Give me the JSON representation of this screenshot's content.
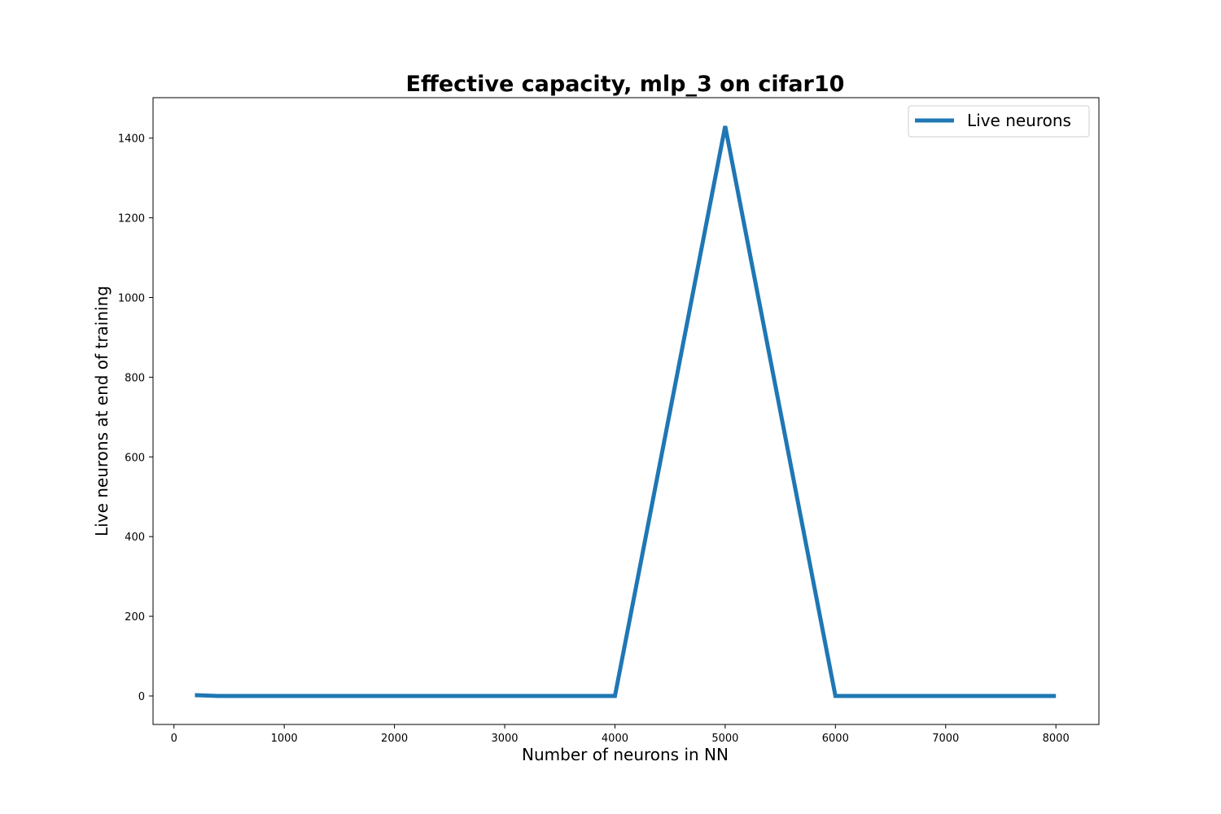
{
  "chart_data": {
    "type": "line",
    "title": "Effective capacity, mlp_3 on cifar10",
    "xlabel": "Number of neurons in NN",
    "ylabel": "Live neurons at end of training",
    "xlim": [
      -190,
      8390
    ],
    "ylim": [
      -71.5,
      1501.5
    ],
    "x_ticks": [
      0,
      1000,
      2000,
      3000,
      4000,
      5000,
      6000,
      7000,
      8000
    ],
    "y_ticks": [
      0,
      200,
      400,
      600,
      800,
      1000,
      1200,
      1400
    ],
    "grid": false,
    "legend_position": "top-right",
    "series": [
      {
        "name": "Live neurons",
        "color": "#1f77b4",
        "x": [
          190,
          400,
          4000,
          5000,
          6000,
          8000
        ],
        "y": [
          2,
          0,
          0,
          1430,
          0,
          0
        ]
      }
    ]
  }
}
